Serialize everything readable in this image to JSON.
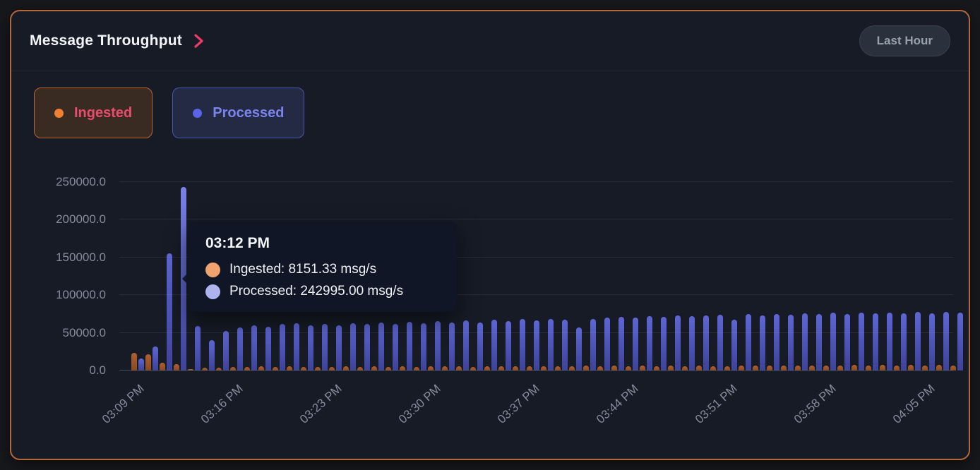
{
  "header": {
    "title": "Message Throughput",
    "time_range_label": "Last Hour"
  },
  "legend": {
    "items": [
      {
        "label": "Ingested",
        "dot_color": "#ee7f33",
        "text_color": "#e84d6f"
      },
      {
        "label": "Processed",
        "dot_color": "#5a64e8",
        "text_color": "#7b84ee"
      }
    ]
  },
  "tooltip": {
    "title": "03:12 PM",
    "rows": [
      {
        "label": "Ingested",
        "value": "8151.33",
        "unit": "msg/s",
        "dot_color": "#f0a36e",
        "text": "Ingested: 8151.33 msg/s"
      },
      {
        "label": "Processed",
        "value": "242995.00",
        "unit": "msg/s",
        "dot_color": "#aeb3f0",
        "text": "Processed: 242995.00 msg/s"
      }
    ]
  },
  "colors": {
    "card_border": "#b4683a",
    "card_bg": "#161b26",
    "chevron": "#ed3d66",
    "ingested_bar": "#a2592b",
    "processed_bar": "#565dc6"
  },
  "chart_data": {
    "type": "bar",
    "title": "Message Throughput",
    "unit": "msg/s",
    "grid": "horizontal",
    "legend_position": "top-left",
    "ylim": [
      0,
      262500
    ],
    "y_ticks": [
      0,
      50000,
      100000,
      150000,
      200000,
      250000
    ],
    "y_tick_labels": [
      "0.0",
      "50000.0",
      "100000.0",
      "150000.0",
      "200000.0",
      "250000.0"
    ],
    "x_tick_every": 7,
    "x_tick_labels": [
      "03:09 PM",
      "03:16 PM",
      "03:23 PM",
      "03:30 PM",
      "03:37 PM",
      "03:44 PM",
      "03:51 PM",
      "03:58 PM",
      "04:05 PM"
    ],
    "highlighted_index": 3,
    "x": [
      "03:09 PM",
      "03:10 PM",
      "03:11 PM",
      "03:12 PM",
      "03:13 PM",
      "03:14 PM",
      "03:15 PM",
      "03:16 PM",
      "03:17 PM",
      "03:18 PM",
      "03:19 PM",
      "03:20 PM",
      "03:21 PM",
      "03:22 PM",
      "03:23 PM",
      "03:24 PM",
      "03:25 PM",
      "03:26 PM",
      "03:27 PM",
      "03:28 PM",
      "03:29 PM",
      "03:30 PM",
      "03:31 PM",
      "03:32 PM",
      "03:33 PM",
      "03:34 PM",
      "03:35 PM",
      "03:36 PM",
      "03:37 PM",
      "03:38 PM",
      "03:39 PM",
      "03:40 PM",
      "03:41 PM",
      "03:42 PM",
      "03:43 PM",
      "03:44 PM",
      "03:45 PM",
      "03:46 PM",
      "03:47 PM",
      "03:48 PM",
      "03:49 PM",
      "03:50 PM",
      "03:51 PM",
      "03:52 PM",
      "03:53 PM",
      "03:54 PM",
      "03:55 PM",
      "03:56 PM",
      "03:57 PM",
      "03:58 PM",
      "03:59 PM",
      "04:00 PM",
      "04:01 PM",
      "04:02 PM",
      "04:03 PM",
      "04:04 PM",
      "04:05 PM",
      "04:06 PM",
      "04:07 PM"
    ],
    "series": [
      {
        "name": "Ingested",
        "color": "#a2592b",
        "color_top": "#b06030",
        "color_bottom": "#8a4a22",
        "values": [
          23400,
          21200,
          10100,
          8151.33,
          2100,
          3600,
          4200,
          5000,
          4500,
          5200,
          4800,
          5400,
          4600,
          5100,
          4900,
          5300,
          4700,
          5500,
          5000,
          5600,
          5100,
          5700,
          5200,
          5800,
          5000,
          5900,
          5400,
          6000,
          5500,
          6100,
          5600,
          5200,
          6200,
          5700,
          6300,
          5800,
          6400,
          5900,
          6500,
          6000,
          6600,
          6100,
          5500,
          6700,
          6200,
          6800,
          6300,
          6900,
          6400,
          7000,
          6500,
          7100,
          6600,
          7200,
          6700,
          7300,
          6800,
          7400,
          6900
        ]
      },
      {
        "name": "Processed",
        "color": "#565dc6",
        "color_top": "#5f66d4",
        "color_bottom": "#3d4398",
        "values": [
          15800,
          32200,
          155400,
          242995,
          59000,
          40200,
          52300,
          57000,
          60100,
          58200,
          61400,
          62500,
          59500,
          61800,
          60400,
          63000,
          61500,
          63800,
          62200,
          64500,
          63000,
          65500,
          64000,
          66200,
          63500,
          67000,
          65800,
          68000,
          66500,
          68800,
          67200,
          57400,
          68500,
          69800,
          71000,
          70200,
          72000,
          71500,
          72800,
          71800,
          73000,
          74200,
          67300,
          74800,
          73500,
          75200,
          74000,
          75800,
          74500,
          76400,
          75000,
          76800,
          75500,
          77000,
          76000,
          77500,
          76200,
          78000,
          77200
        ]
      }
    ]
  }
}
